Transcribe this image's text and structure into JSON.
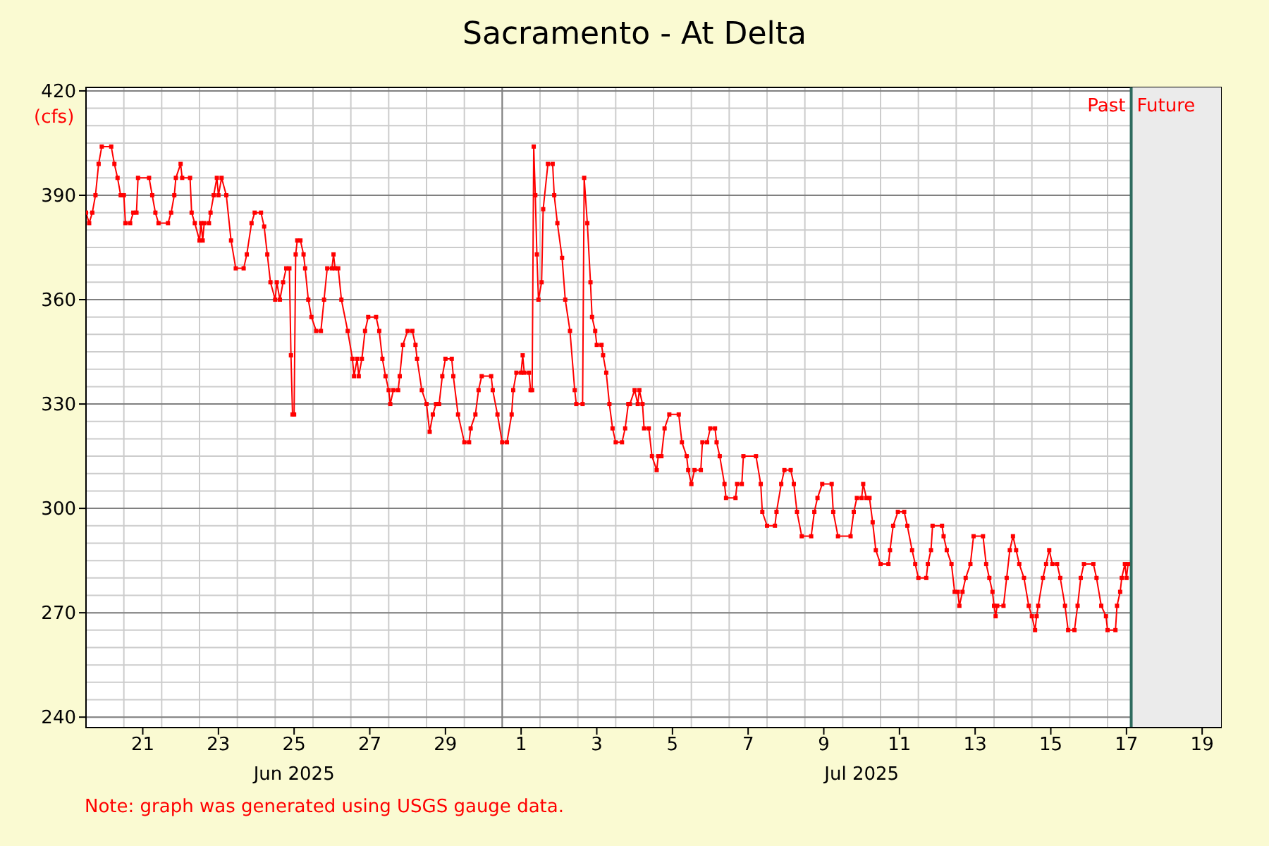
{
  "chart_data": {
    "type": "line",
    "title": "Sacramento - At Delta",
    "ylabel": "(cfs)",
    "x": [
      "2025-06-20T00:00",
      "2025-06-20T02:00",
      "2025-06-20T04:00",
      "2025-06-20T06:00",
      "2025-06-20T08:00",
      "2025-06-20T10:00",
      "2025-06-20T16:00",
      "2025-06-20T18:00",
      "2025-06-20T20:00",
      "2025-06-20T22:00",
      "2025-06-21T00:00",
      "2025-06-21T01:00",
      "2025-06-21T04:00",
      "2025-06-21T06:00",
      "2025-06-21T08:00",
      "2025-06-21T09:00",
      "2025-06-21T16:00",
      "2025-06-21T18:00",
      "2025-06-21T20:00",
      "2025-06-21T22:00",
      "2025-06-22T04:00",
      "2025-06-22T06:00",
      "2025-06-22T08:00",
      "2025-06-22T09:00",
      "2025-06-22T12:00",
      "2025-06-22T13:00",
      "2025-06-22T18:00",
      "2025-06-22T19:00",
      "2025-06-22T21:00",
      "2025-06-23T00:00",
      "2025-06-23T01:00",
      "2025-06-23T02:00",
      "2025-06-23T03:00",
      "2025-06-23T06:00",
      "2025-06-23T07:00",
      "2025-06-23T09:00",
      "2025-06-23T11:00",
      "2025-06-23T12:00",
      "2025-06-23T14:00",
      "2025-06-23T17:00",
      "2025-06-23T20:00",
      "2025-06-23T23:00",
      "2025-06-24T04:00",
      "2025-06-24T06:00",
      "2025-06-24T09:00",
      "2025-06-24T11:00",
      "2025-06-24T15:00",
      "2025-06-24T17:00",
      "2025-06-24T19:00",
      "2025-06-24T21:00",
      "2025-06-25T00:00",
      "2025-06-25T01:00",
      "2025-06-25T03:00",
      "2025-06-25T05:00",
      "2025-06-25T07:00",
      "2025-06-25T09:00",
      "2025-06-25T10:00",
      "2025-06-25T11:00",
      "2025-06-25T12:00",
      "2025-06-25T13:00",
      "2025-06-25T14:00",
      "2025-06-25T16:00",
      "2025-06-25T18:00",
      "2025-06-25T19:00",
      "2025-06-25T21:00",
      "2025-06-25T23:00",
      "2025-06-26T02:00",
      "2025-06-26T05:00",
      "2025-06-26T07:00",
      "2025-06-26T09:00",
      "2025-06-26T12:00",
      "2025-06-26T13:00",
      "2025-06-26T14:00",
      "2025-06-26T16:00",
      "2025-06-26T18:00",
      "2025-06-26T22:00",
      "2025-06-27T01:00",
      "2025-06-27T02:00",
      "2025-06-27T04:00",
      "2025-06-27T05:00",
      "2025-06-27T07:00",
      "2025-06-27T09:00",
      "2025-06-27T11:00",
      "2025-06-27T16:00",
      "2025-06-27T18:00",
      "2025-06-27T20:00",
      "2025-06-27T22:00",
      "2025-06-28T00:00",
      "2025-06-28T01:00",
      "2025-06-28T03:00",
      "2025-06-28T06:00",
      "2025-06-28T07:00",
      "2025-06-28T09:00",
      "2025-06-28T12:00",
      "2025-06-28T15:00",
      "2025-06-28T17:00",
      "2025-06-28T18:00",
      "2025-06-28T21:00",
      "2025-06-29T00:00",
      "2025-06-29T02:00",
      "2025-06-29T04:00",
      "2025-06-29T06:00",
      "2025-06-29T08:00",
      "2025-06-29T10:00",
      "2025-06-29T12:00",
      "2025-06-29T16:00",
      "2025-06-29T17:00",
      "2025-06-29T20:00",
      "2025-06-30T00:00",
      "2025-06-30T03:00",
      "2025-06-30T04:00",
      "2025-06-30T07:00",
      "2025-06-30T09:00",
      "2025-06-30T11:00",
      "2025-06-30T17:00",
      "2025-06-30T18:00",
      "2025-06-30T21:00",
      "2025-07-01T00:00",
      "2025-07-01T03:00",
      "2025-07-01T06:00",
      "2025-07-01T07:00",
      "2025-07-01T09:00",
      "2025-07-01T12:00",
      "2025-07-01T13:00",
      "2025-07-01T14:00",
      "2025-07-01T17:00",
      "2025-07-01T18:00",
      "2025-07-01T19:00",
      "2025-07-01T20:00",
      "2025-07-01T21:00",
      "2025-07-01T22:00",
      "2025-07-01T23:00",
      "2025-07-02T01:00",
      "2025-07-02T02:00",
      "2025-07-02T05:00",
      "2025-07-02T08:00",
      "2025-07-02T09:00",
      "2025-07-02T11:00",
      "2025-07-02T14:00",
      "2025-07-02T16:00",
      "2025-07-02T19:00",
      "2025-07-02T22:00",
      "2025-07-02T23:00",
      "2025-07-03T03:00",
      "2025-07-03T04:00",
      "2025-07-03T06:00",
      "2025-07-03T08:00",
      "2025-07-03T09:00",
      "2025-07-03T11:00",
      "2025-07-03T12:00",
      "2025-07-03T15:00",
      "2025-07-03T16:00",
      "2025-07-03T18:00",
      "2025-07-03T20:00",
      "2025-07-03T22:00",
      "2025-07-04T00:00",
      "2025-07-04T04:00",
      "2025-07-04T06:00",
      "2025-07-04T08:00",
      "2025-07-04T09:00",
      "2025-07-04T12:00",
      "2025-07-04T14:00",
      "2025-07-04T15:00",
      "2025-07-04T17:00",
      "2025-07-04T18:00",
      "2025-07-04T21:00",
      "2025-07-04T23:00",
      "2025-07-05T02:00",
      "2025-07-05T03:00",
      "2025-07-05T05:00",
      "2025-07-05T07:00",
      "2025-07-05T10:00",
      "2025-07-05T16:00",
      "2025-07-05T18:00",
      "2025-07-05T21:00",
      "2025-07-05T22:00",
      "2025-07-06T00:00",
      "2025-07-06T02:00",
      "2025-07-06T06:00",
      "2025-07-06T07:00",
      "2025-07-06T10:00",
      "2025-07-06T12:00",
      "2025-07-06T15:00",
      "2025-07-06T16:00",
      "2025-07-06T18:00",
      "2025-07-06T21:00",
      "2025-07-06T22:00",
      "2025-07-07T04:00",
      "2025-07-07T05:00",
      "2025-07-07T08:00",
      "2025-07-07T09:00",
      "2025-07-07T17:00",
      "2025-07-07T20:00",
      "2025-07-07T21:00",
      "2025-07-08T00:00",
      "2025-07-08T05:00",
      "2025-07-08T06:00",
      "2025-07-08T09:00",
      "2025-07-08T11:00",
      "2025-07-08T15:00",
      "2025-07-08T17:00",
      "2025-07-08T19:00",
      "2025-07-08T22:00",
      "2025-07-09T04:00",
      "2025-07-09T06:00",
      "2025-07-09T08:00",
      "2025-07-09T11:00",
      "2025-07-09T17:00",
      "2025-07-09T18:00",
      "2025-07-09T21:00",
      "2025-07-10T05:00",
      "2025-07-10T07:00",
      "2025-07-10T09:00",
      "2025-07-10T12:00",
      "2025-07-10T13:00",
      "2025-07-10T15:00",
      "2025-07-10T17:00",
      "2025-07-10T19:00",
      "2025-07-10T21:00",
      "2025-07-11T00:00",
      "2025-07-11T05:00",
      "2025-07-11T06:00",
      "2025-07-11T08:00",
      "2025-07-11T11:00",
      "2025-07-11T15:00",
      "2025-07-11T17:00",
      "2025-07-11T20:00",
      "2025-07-11T22:00",
      "2025-07-12T00:00",
      "2025-07-12T05:00",
      "2025-07-12T06:00",
      "2025-07-12T08:00",
      "2025-07-12T09:00",
      "2025-07-12T15:00",
      "2025-07-12T16:00",
      "2025-07-12T18:00",
      "2025-07-12T21:00",
      "2025-07-12T23:00",
      "2025-07-13T01:00",
      "2025-07-13T02:00",
      "2025-07-13T04:00",
      "2025-07-13T06:00",
      "2025-07-13T09:00",
      "2025-07-13T11:00",
      "2025-07-13T17:00",
      "2025-07-13T19:00",
      "2025-07-13T21:00",
      "2025-07-13T23:00",
      "2025-07-14T00:00",
      "2025-07-14T01:00",
      "2025-07-14T02:00",
      "2025-07-14T06:00",
      "2025-07-14T08:00",
      "2025-07-14T10:00",
      "2025-07-14T12:00",
      "2025-07-14T14:00",
      "2025-07-14T16:00",
      "2025-07-14T19:00",
      "2025-07-14T22:00",
      "2025-07-15T00:00",
      "2025-07-15T02:00",
      "2025-07-15T03:00",
      "2025-07-15T04:00",
      "2025-07-15T07:00",
      "2025-07-15T09:00",
      "2025-07-15T11:00",
      "2025-07-15T13:00",
      "2025-07-15T16:00",
      "2025-07-15T18:00",
      "2025-07-15T21:00",
      "2025-07-15T23:00",
      "2025-07-16T03:00",
      "2025-07-16T05:00",
      "2025-07-16T07:00",
      "2025-07-16T09:00",
      "2025-07-16T15:00",
      "2025-07-16T17:00",
      "2025-07-16T20:00",
      "2025-07-16T23:00",
      "2025-07-17T00:00",
      "2025-07-17T05:00",
      "2025-07-17T06:00",
      "2025-07-17T08:00",
      "2025-07-17T09:00",
      "2025-07-17T11:00",
      "2025-07-17T12:00",
      "2025-07-17T13:00"
    ],
    "values": [
      385,
      382,
      385,
      390,
      399,
      404,
      404,
      399,
      395,
      390,
      390,
      382,
      382,
      385,
      385,
      395,
      395,
      390,
      385,
      382,
      382,
      385,
      390,
      395,
      399,
      395,
      395,
      385,
      382,
      377,
      382,
      377,
      382,
      382,
      385,
      390,
      395,
      390,
      395,
      390,
      377,
      369,
      369,
      373,
      382,
      385,
      385,
      381,
      373,
      365,
      360,
      365,
      360,
      365,
      369,
      369,
      344,
      327,
      327,
      373,
      377,
      377,
      373,
      369,
      360,
      355,
      351,
      351,
      360,
      369,
      369,
      373,
      369,
      369,
      360,
      351,
      343,
      338,
      343,
      338,
      343,
      351,
      355,
      355,
      351,
      343,
      338,
      334,
      330,
      334,
      334,
      338,
      347,
      351,
      351,
      347,
      343,
      334,
      330,
      322,
      327,
      330,
      330,
      338,
      343,
      343,
      338,
      327,
      319,
      319,
      323,
      327,
      334,
      338,
      338,
      334,
      327,
      319,
      319,
      327,
      334,
      339,
      339,
      344,
      339,
      339,
      334,
      334,
      404,
      390,
      373,
      360,
      365,
      386,
      399,
      399,
      390,
      382,
      372,
      360,
      351,
      334,
      330,
      330,
      395,
      382,
      365,
      355,
      351,
      347,
      347,
      344,
      339,
      330,
      323,
      319,
      319,
      323,
      330,
      330,
      334,
      330,
      334,
      330,
      323,
      323,
      315,
      311,
      315,
      315,
      323,
      327,
      327,
      319,
      315,
      311,
      307,
      311,
      311,
      319,
      319,
      323,
      323,
      319,
      315,
      307,
      303,
      303,
      307,
      307,
      315,
      315,
      307,
      299,
      295,
      295,
      299,
      307,
      311,
      311,
      307,
      299,
      292,
      292,
      299,
      303,
      307,
      307,
      299,
      292,
      292,
      299,
      303,
      303,
      307,
      303,
      303,
      296,
      288,
      284,
      284,
      288,
      295,
      299,
      299,
      295,
      288,
      284,
      280,
      280,
      284,
      288,
      295,
      295,
      292,
      288,
      284,
      276,
      276,
      272,
      276,
      280,
      284,
      292,
      292,
      284,
      280,
      276,
      272,
      269,
      272,
      272,
      280,
      288,
      292,
      288,
      284,
      280,
      272,
      269,
      265,
      269,
      272,
      280,
      284,
      288,
      284,
      284,
      280,
      272,
      265,
      265,
      272,
      280,
      284,
      284,
      280,
      272,
      269,
      265,
      265,
      272,
      276,
      280,
      284,
      280,
      284
    ],
    "color": "#ff0000",
    "marker": "square",
    "line_style": "solid",
    "grid": true,
    "xlim": [
      "2025-06-20",
      "2025-07-20"
    ],
    "xticks": [
      {
        "value": "2025-06-21T12:00",
        "label": "21"
      },
      {
        "value": "2025-06-23T12:00",
        "label": "23"
      },
      {
        "value": "2025-06-25T12:00",
        "label": "25"
      },
      {
        "value": "2025-06-27T12:00",
        "label": "27"
      },
      {
        "value": "2025-06-29T12:00",
        "label": "29"
      },
      {
        "value": "2025-07-01T12:00",
        "label": "1"
      },
      {
        "value": "2025-07-03T12:00",
        "label": "3"
      },
      {
        "value": "2025-07-05T12:00",
        "label": "5"
      },
      {
        "value": "2025-07-07T12:00",
        "label": "7"
      },
      {
        "value": "2025-07-09T12:00",
        "label": "9"
      },
      {
        "value": "2025-07-11T12:00",
        "label": "11"
      },
      {
        "value": "2025-07-13T12:00",
        "label": "13"
      },
      {
        "value": "2025-07-15T12:00",
        "label": "15"
      },
      {
        "value": "2025-07-17T12:00",
        "label": "17"
      },
      {
        "value": "2025-07-19T12:00",
        "label": "19"
      }
    ],
    "ylim": [
      237,
      421
    ],
    "yticks": [
      240,
      270,
      300,
      330,
      360,
      390,
      420
    ],
    "ref_lines": [
      {
        "axis": "x",
        "value": "2025-07-17T15:00",
        "label": "Past",
        "color": "#2e6b5e"
      }
    ],
    "bands": [
      {
        "axis": "x",
        "from": "2025-07-17T15:00",
        "to": "2025-07-20",
        "label": "Future",
        "color": "#ebebeb"
      }
    ],
    "annotations": [
      "Jun 2025",
      "Jul 2025",
      "Note: graph was generated using USGS gauge data."
    ]
  }
}
